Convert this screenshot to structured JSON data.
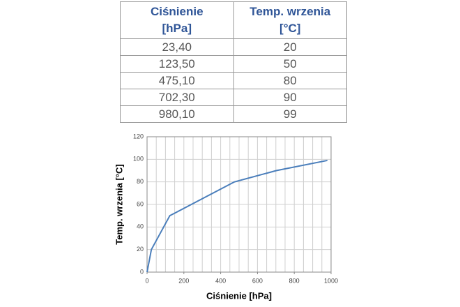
{
  "table": {
    "header": [
      [
        "Ciśnienie",
        "[hPa]"
      ],
      [
        "Temp. wrzenia",
        "[°C]"
      ]
    ],
    "rows": [
      [
        "23,40",
        "20"
      ],
      [
        "123,50",
        "50"
      ],
      [
        "475,10",
        "80"
      ],
      [
        "702,30",
        "90"
      ],
      [
        "980,10",
        "99"
      ]
    ]
  },
  "chart_data": {
    "type": "line",
    "x_label": "Ciśnienie [hPa]",
    "y_label": "Temp. wrzenia [°C]",
    "x": [
      0,
      23.4,
      123.5,
      475.1,
      702.3,
      980.1
    ],
    "series": [
      {
        "name": "Temp. wrzenia",
        "color": "#4a7ebb",
        "values": [
          0,
          20,
          50,
          80,
          90,
          99
        ]
      }
    ],
    "xlim": [
      0,
      1000
    ],
    "xticks": [
      0,
      200,
      400,
      600,
      800,
      1000
    ],
    "xgrid_step": 50,
    "ylim": [
      0,
      120
    ],
    "yticks": [
      0,
      20,
      40,
      60,
      80,
      100,
      120
    ],
    "grid": true
  }
}
